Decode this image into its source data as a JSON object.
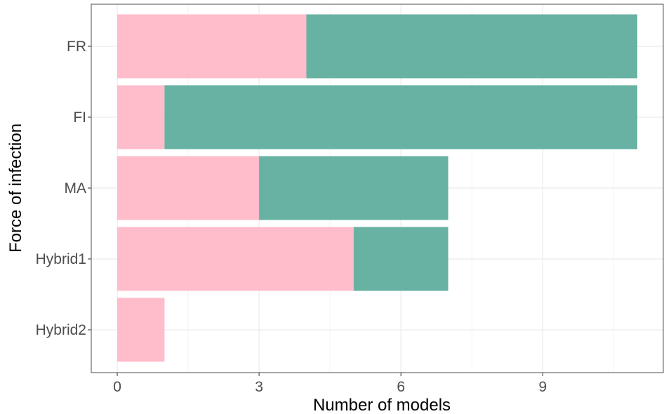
{
  "chart_data": {
    "type": "bar",
    "orientation": "horizontal",
    "stacked": true,
    "title": "",
    "xlabel": "Number of models",
    "ylabel": "Force of infection",
    "categories": [
      "FR",
      "FI",
      "MA",
      "Hybrid1",
      "Hybrid2"
    ],
    "series": [
      {
        "color": "#ffbccb",
        "values": [
          4,
          1,
          3,
          5,
          1
        ]
      },
      {
        "color": "#67b2a2",
        "values": [
          7,
          10,
          4,
          2,
          0
        ]
      }
    ],
    "xlim": [
      -0.55,
      11.55
    ],
    "xticks": [
      0,
      3,
      6,
      9
    ],
    "grid": true,
    "legend": "none"
  }
}
